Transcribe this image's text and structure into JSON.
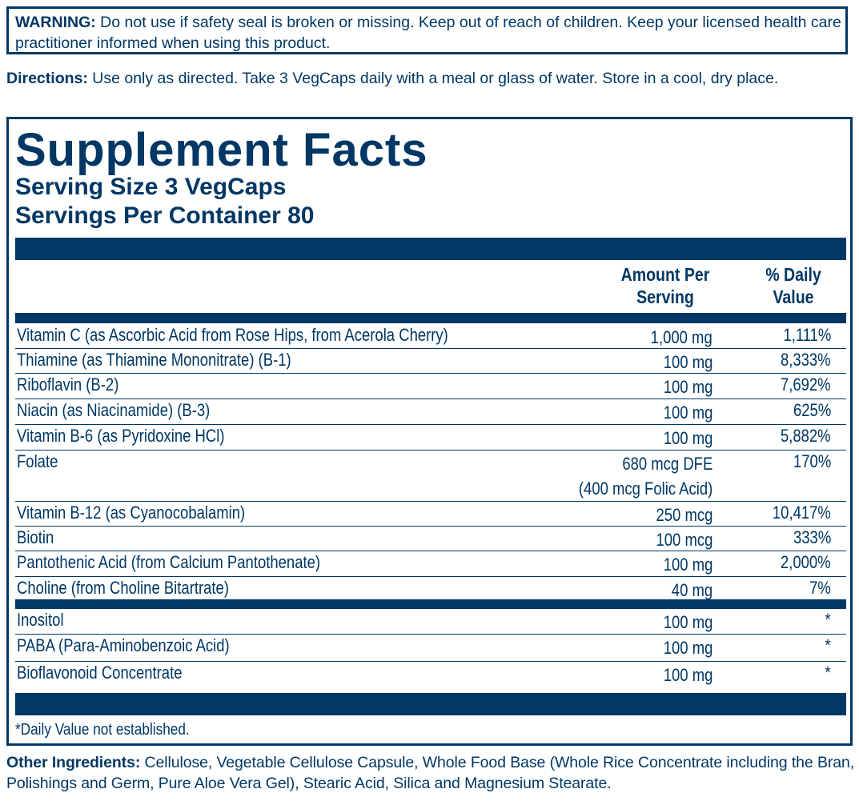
{
  "warning": {
    "label": "WARNING:",
    "text": " Do not use if safety seal is broken or missing. Keep out of reach of children. Keep your licensed health care practitioner informed when using this product."
  },
  "directions": {
    "label": "Directions:",
    "text": " Use only as directed. Take 3 VegCaps daily with a meal or glass of water. Store in a cool, dry place."
  },
  "facts": {
    "title": "Supplement Facts",
    "serving_size": "Serving Size 3 VegCaps",
    "servings_per_container": "Servings Per Container 80",
    "col_amount_1": "Amount Per",
    "col_amount_2": "Serving",
    "col_dv_1": "% Daily",
    "col_dv_2": "Value",
    "rows": [
      {
        "name": "Vitamin C (as Ascorbic Acid from Rose Hips, from Acerola Cherry)",
        "amount": "1,000 mg",
        "dv": "1,111%"
      },
      {
        "name": "Thiamine (as Thiamine Mononitrate) (B-1)",
        "amount": "100 mg",
        "dv": "8,333%"
      },
      {
        "name": "Riboflavin (B-2)",
        "amount": "100 mg",
        "dv": "7,692%"
      },
      {
        "name": "Niacin (as Niacinamide) (B-3)",
        "amount": "100 mg",
        "dv": "625%"
      },
      {
        "name": "Vitamin B-6 (as Pyridoxine HCl)",
        "amount": "100 mg",
        "dv": "5,882%"
      },
      {
        "name": "Folate",
        "amount": "680 mcg DFE",
        "amount2": "(400 mcg Folic Acid)",
        "dv": "170%"
      },
      {
        "name": "Vitamin B-12 (as Cyanocobalamin)",
        "amount": "250 mcg",
        "dv": "10,417%"
      },
      {
        "name": "Biotin",
        "amount": "100 mcg",
        "dv": "333%"
      },
      {
        "name": "Pantothenic Acid (from Calcium Pantothenate)",
        "amount": "100 mg",
        "dv": "2,000%"
      },
      {
        "name": "Choline (from Choline Bitartrate)",
        "amount": "40 mg",
        "dv": "7%"
      },
      {
        "name": "Inositol",
        "amount": "100 mg",
        "dv": "*"
      },
      {
        "name": "PABA (Para-Aminobenzoic Acid)",
        "amount": "100 mg",
        "dv": "*"
      },
      {
        "name": "Bioflavonoid Concentrate",
        "amount": "100 mg",
        "dv": "*"
      }
    ],
    "footnote": "*Daily Value not established."
  },
  "other_ingredients": {
    "label": "Other Ingredients:",
    "text": " Cellulose, Vegetable Cellulose Capsule, Whole Food Base (Whole Rice Concentrate including the Bran, Polishings and Germ, Pure Aloe Vera Gel), Stearic Acid, Silica and Magnesium Stearate."
  },
  "colors": {
    "ink": "#003764"
  }
}
